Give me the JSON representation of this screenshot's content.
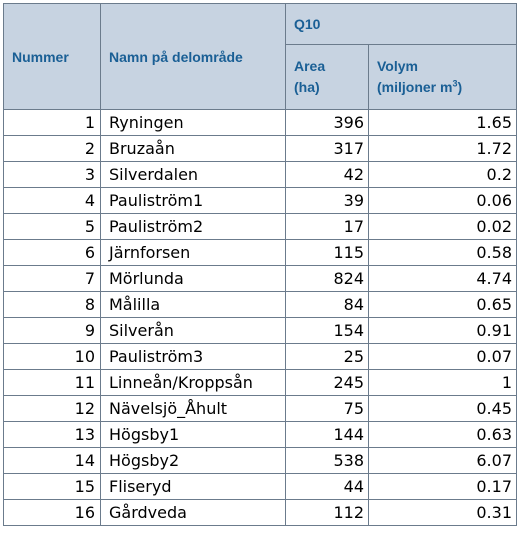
{
  "header": {
    "nummer": "Nummer",
    "namn": "Namn på delområde",
    "group": "Q10",
    "area_line1": "Area",
    "area_line2": "(ha)",
    "volym_line1": "Volym",
    "volym_line2": "(miljoner m",
    "volym_sup": "3",
    "volym_close": ")"
  },
  "rows": [
    {
      "nummer": "1",
      "namn": "Ryningen",
      "area": "396",
      "volym": "1.65"
    },
    {
      "nummer": "2",
      "namn": "Bruzaån",
      "area": "317",
      "volym": "1.72"
    },
    {
      "nummer": "3",
      "namn": "Silverdalen",
      "area": "42",
      "volym": "0.2"
    },
    {
      "nummer": "4",
      "namn": "Pauliström1",
      "area": "39",
      "volym": "0.06"
    },
    {
      "nummer": "5",
      "namn": "Pauliström2",
      "area": "17",
      "volym": "0.02"
    },
    {
      "nummer": "6",
      "namn": "Järnforsen",
      "area": "115",
      "volym": "0.58"
    },
    {
      "nummer": "7",
      "namn": "Mörlunda",
      "area": "824",
      "volym": "4.74"
    },
    {
      "nummer": "8",
      "namn": "Målilla",
      "area": "84",
      "volym": "0.65"
    },
    {
      "nummer": "9",
      "namn": "Silverån",
      "area": "154",
      "volym": "0.91"
    },
    {
      "nummer": "10",
      "namn": "Pauliström3",
      "area": "25",
      "volym": "0.07"
    },
    {
      "nummer": "11",
      "namn": "Linneån/Kroppsån",
      "area": "245",
      "volym": "1"
    },
    {
      "nummer": "12",
      "namn": "Nävelsjö_Åhult",
      "area": "75",
      "volym": "0.45"
    },
    {
      "nummer": "13",
      "namn": "Högsby1",
      "area": "144",
      "volym": "0.63"
    },
    {
      "nummer": "14",
      "namn": "Högsby2",
      "area": "538",
      "volym": "6.07"
    },
    {
      "nummer": "15",
      "namn": "Fliseryd",
      "area": "44",
      "volym": "0.17"
    },
    {
      "nummer": "16",
      "namn": "Gårdveda",
      "area": "112",
      "volym": "0.31"
    }
  ]
}
